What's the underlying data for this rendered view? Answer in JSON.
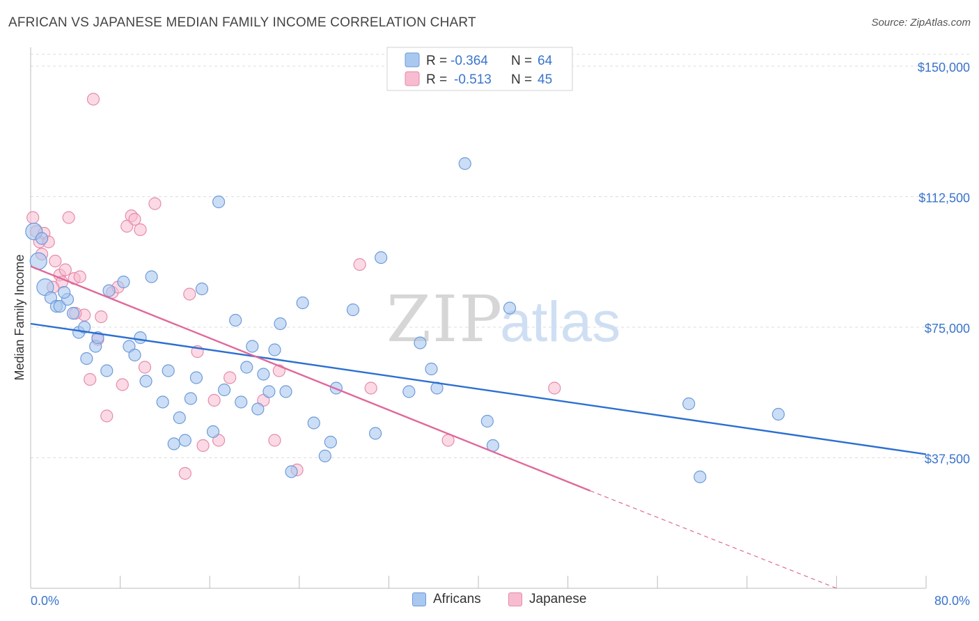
{
  "header": {
    "title": "AFRICAN VS JAPANESE MEDIAN FAMILY INCOME CORRELATION CHART",
    "source": "Source: ZipAtlas.com"
  },
  "watermark": {
    "zip": "ZIP",
    "atlas": "atlas"
  },
  "legend_top": [
    {
      "r_label": "R =",
      "r_value": "-0.364",
      "n_label": "N =",
      "n_value": "64"
    },
    {
      "r_label": "R =",
      "r_value": "-0.513",
      "n_label": "N =",
      "n_value": "45"
    }
  ],
  "legend_bottom": {
    "africans": "Africans",
    "japanese": "Japanese"
  },
  "colors": {
    "africans_fill": "#a9c8f0",
    "africans_stroke": "#6d9ad8",
    "africans_line": "#2b6fd1",
    "japanese_fill": "#f7bcd0",
    "japanese_stroke": "#e58aa9",
    "japanese_line": "#e0689a",
    "axis_label_blue": "#3a74cc",
    "grid": "#dddddd"
  },
  "chart_data": {
    "type": "scatter",
    "title": "AFRICAN VS JAPANESE MEDIAN FAMILY INCOME CORRELATION CHART",
    "ylabel": "Median Family Income",
    "xlabel": "",
    "xlim": [
      0,
      80
    ],
    "ylim": [
      0,
      155000
    ],
    "x_tick_labels": [
      "0.0%",
      "80.0%"
    ],
    "y_ticks": [
      37500,
      75000,
      112500,
      150000
    ],
    "y_tick_labels": [
      "$37,500",
      "$75,000",
      "$112,500",
      "$150,000"
    ],
    "grid": "horizontal-dashed",
    "legend_placement": "top-center",
    "series": [
      {
        "name": "Africans",
        "r": -0.364,
        "n": 64,
        "trend": {
          "x": [
            0,
            80
          ],
          "y": [
            76000,
            38500
          ]
        },
        "points": [
          [
            0.3,
            102500
          ],
          [
            0.7,
            94000
          ],
          [
            1.3,
            86500
          ],
          [
            1.8,
            83500
          ],
          [
            2.3,
            81000
          ],
          [
            2.6,
            81000
          ],
          [
            3.3,
            83000
          ],
          [
            3.8,
            79000
          ],
          [
            4.3,
            73500
          ],
          [
            4.8,
            75000
          ],
          [
            5.8,
            69500
          ],
          [
            6.8,
            62500
          ],
          [
            8.3,
            88000
          ],
          [
            8.8,
            69500
          ],
          [
            9.3,
            67000
          ],
          [
            9.8,
            72000
          ],
          [
            10.3,
            59500
          ],
          [
            10.8,
            89500
          ],
          [
            11.8,
            53500
          ],
          [
            12.3,
            62500
          ],
          [
            12.8,
            41500
          ],
          [
            13.3,
            49000
          ],
          [
            13.8,
            42500
          ],
          [
            14.3,
            54500
          ],
          [
            14.8,
            60500
          ],
          [
            15.3,
            86000
          ],
          [
            16.3,
            45000
          ],
          [
            16.8,
            111000
          ],
          [
            17.3,
            57000
          ],
          [
            18.3,
            77000
          ],
          [
            18.8,
            53500
          ],
          [
            19.3,
            63500
          ],
          [
            19.8,
            69500
          ],
          [
            20.3,
            51500
          ],
          [
            20.8,
            61500
          ],
          [
            21.3,
            56500
          ],
          [
            21.8,
            68500
          ],
          [
            22.3,
            76000
          ],
          [
            22.8,
            56500
          ],
          [
            23.3,
            33500
          ],
          [
            24.3,
            82000
          ],
          [
            25.3,
            47500
          ],
          [
            26.3,
            38000
          ],
          [
            26.8,
            42000
          ],
          [
            27.3,
            57500
          ],
          [
            28.8,
            80000
          ],
          [
            30.8,
            44500
          ],
          [
            31.3,
            95000
          ],
          [
            33.8,
            56500
          ],
          [
            34.8,
            70500
          ],
          [
            35.8,
            63000
          ],
          [
            36.3,
            57500
          ],
          [
            38.8,
            122000
          ],
          [
            40.8,
            48000
          ],
          [
            41.3,
            41000
          ],
          [
            42.8,
            80500
          ],
          [
            58.8,
            53000
          ],
          [
            59.8,
            32000
          ],
          [
            66.8,
            50000
          ],
          [
            5.0,
            66000
          ],
          [
            3.0,
            85000
          ],
          [
            7.0,
            85500
          ],
          [
            1.0,
            100500
          ],
          [
            6.0,
            72000
          ]
        ]
      },
      {
        "name": "Japanese",
        "r": -0.513,
        "n": 45,
        "trend": {
          "x": [
            0,
            50
          ],
          "y": [
            92500,
            28000
          ]
        },
        "trend_extension": {
          "x": [
            50,
            72
          ],
          "y": [
            28000,
            0
          ]
        },
        "points": [
          [
            0.2,
            106500
          ],
          [
            0.5,
            102500
          ],
          [
            0.8,
            99500
          ],
          [
            1.2,
            102000
          ],
          [
            1.6,
            99500
          ],
          [
            2.2,
            94000
          ],
          [
            2.6,
            90000
          ],
          [
            3.1,
            91500
          ],
          [
            3.4,
            106500
          ],
          [
            3.9,
            89000
          ],
          [
            4.4,
            89500
          ],
          [
            4.8,
            78500
          ],
          [
            5.3,
            60000
          ],
          [
            5.6,
            140500
          ],
          [
            6.0,
            71500
          ],
          [
            6.3,
            78000
          ],
          [
            6.8,
            49500
          ],
          [
            7.3,
            85000
          ],
          [
            7.8,
            86500
          ],
          [
            8.2,
            58500
          ],
          [
            8.6,
            104000
          ],
          [
            9.0,
            107000
          ],
          [
            9.3,
            106000
          ],
          [
            9.8,
            103000
          ],
          [
            10.2,
            63500
          ],
          [
            11.1,
            110500
          ],
          [
            13.8,
            33000
          ],
          [
            14.2,
            84500
          ],
          [
            14.9,
            68000
          ],
          [
            15.4,
            41000
          ],
          [
            16.4,
            54000
          ],
          [
            16.8,
            42500
          ],
          [
            17.8,
            60500
          ],
          [
            20.8,
            54000
          ],
          [
            21.8,
            42500
          ],
          [
            22.2,
            62500
          ],
          [
            23.8,
            34000
          ],
          [
            29.4,
            93000
          ],
          [
            30.4,
            57500
          ],
          [
            37.3,
            42500
          ],
          [
            46.8,
            57500
          ],
          [
            1.0,
            96000
          ],
          [
            2.8,
            88000
          ],
          [
            4.0,
            79000
          ],
          [
            2.0,
            86500
          ]
        ]
      }
    ]
  }
}
